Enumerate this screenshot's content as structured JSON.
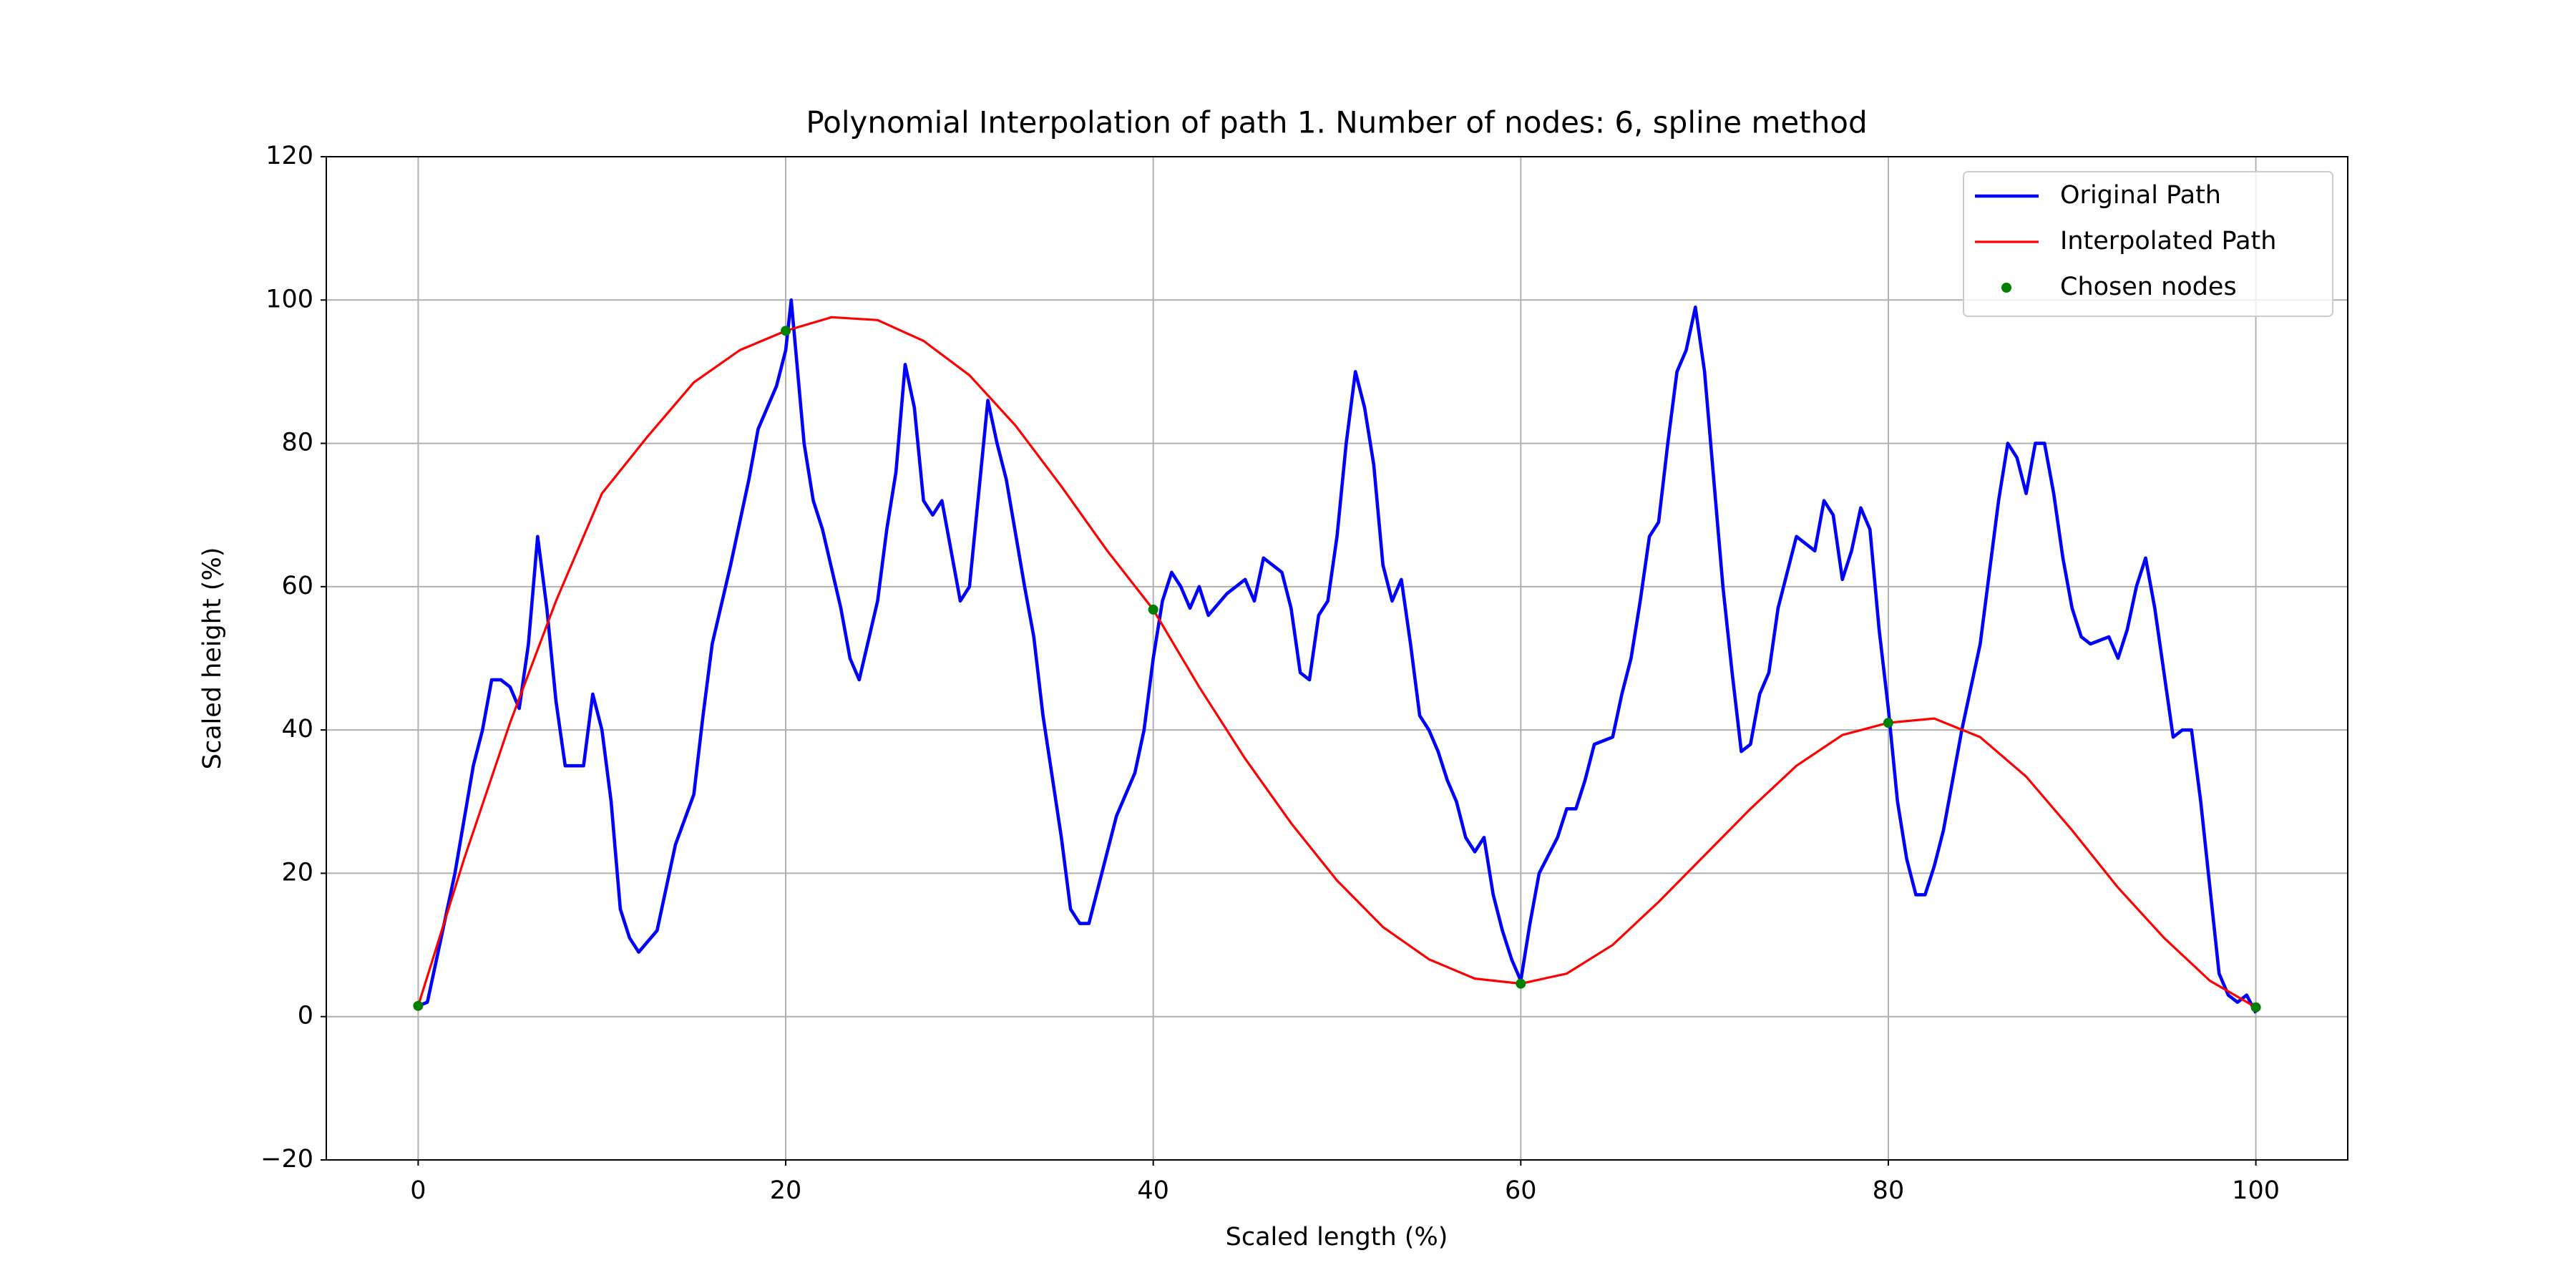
{
  "chart_data": {
    "type": "line",
    "title": "Polynomial Interpolation of path 1. Number of nodes: 6, spline method",
    "xlabel": "Scaled length (%)",
    "ylabel": "Scaled height (%)",
    "xlim": [
      -5,
      105
    ],
    "ylim": [
      -20,
      120
    ],
    "xticks": [
      0,
      20,
      40,
      60,
      80,
      100
    ],
    "yticks": [
      {
        "value": -20,
        "label": "−20"
      },
      0,
      20,
      40,
      60,
      80,
      100,
      120
    ],
    "grid": true,
    "legend": "upper right",
    "series": [
      {
        "name": "Original Path",
        "color": "#0000ff",
        "kind": "line",
        "x": [
          0,
          0.5,
          1,
          2,
          3,
          3.5,
          4,
          4.5,
          5,
          5.5,
          6,
          6.5,
          7,
          7.5,
          8,
          9,
          9.5,
          10,
          10.5,
          11,
          11.5,
          12,
          13,
          14,
          15,
          15.5,
          16,
          17,
          18,
          18.5,
          19,
          19.5,
          20,
          20.3,
          21,
          21.5,
          22,
          23,
          23.5,
          24,
          25,
          25.5,
          26,
          26.5,
          27,
          27.5,
          28,
          28.5,
          29,
          29.5,
          30,
          31,
          31.5,
          32,
          33,
          33.5,
          34,
          35,
          35.5,
          36,
          36.5,
          37,
          38,
          39,
          39.5,
          40,
          40.5,
          41,
          41.5,
          42,
          42.5,
          43,
          44,
          45,
          45.5,
          46,
          47,
          47.5,
          48,
          48.5,
          49,
          49.5,
          50,
          50.5,
          51,
          51.5,
          52,
          52.5,
          53,
          53.5,
          54,
          54.5,
          55,
          55.5,
          56,
          56.5,
          57,
          57.5,
          58,
          58.5,
          59,
          59.5,
          60,
          60.5,
          61,
          62,
          62.5,
          63,
          63.5,
          64,
          65,
          65.5,
          66,
          66.5,
          67,
          67.5,
          68,
          68.5,
          69,
          69.5,
          70,
          70.5,
          71,
          71.5,
          72,
          72.5,
          73,
          73.5,
          74,
          74.5,
          75,
          75.5,
          76,
          76.5,
          77,
          77.5,
          78,
          78.5,
          79,
          79.5,
          80,
          80.5,
          81,
          81.5,
          82,
          82.5,
          83,
          83.5,
          84,
          85,
          85.5,
          86,
          86.5,
          87,
          87.5,
          88,
          88.5,
          89,
          89.5,
          90,
          90.5,
          91,
          92,
          92.5,
          93,
          93.5,
          94,
          94.5,
          95,
          95.5,
          96,
          96.5,
          97,
          97.5,
          98,
          98.5,
          99,
          99.5,
          100
        ],
        "values": [
          1.5,
          2,
          8,
          20,
          35,
          40,
          47,
          47,
          46,
          43,
          52,
          67,
          57,
          44,
          35,
          35,
          45,
          40,
          30,
          15,
          11,
          9,
          12,
          24,
          31,
          42,
          52,
          63,
          75,
          82,
          85,
          88,
          93,
          100,
          80,
          72,
          68,
          57,
          50,
          47,
          58,
          68,
          76,
          91,
          85,
          72,
          70,
          72,
          65,
          58,
          60,
          86,
          80,
          75,
          60,
          53,
          42,
          25,
          15,
          13,
          13,
          18,
          28,
          34,
          40,
          50,
          58,
          62,
          60,
          57,
          60,
          56,
          59,
          61,
          58,
          64,
          62,
          57,
          48,
          47,
          56,
          58,
          67,
          80,
          90,
          85,
          77,
          63,
          58,
          61,
          52,
          42,
          40,
          37,
          33,
          30,
          25,
          23,
          25,
          17,
          12,
          8,
          5,
          13,
          20,
          25,
          29,
          29,
          33,
          38,
          39,
          45,
          50,
          58,
          67,
          69,
          80,
          90,
          93,
          99,
          90,
          75,
          60,
          48,
          37,
          38,
          45,
          48,
          57,
          62,
          67,
          66,
          65,
          72,
          70,
          61,
          65,
          71,
          68,
          54,
          43,
          30,
          22,
          17,
          17,
          21,
          26,
          33,
          40,
          52,
          62,
          72,
          80,
          78,
          73,
          80,
          80,
          73,
          64,
          57,
          53,
          52,
          53,
          50,
          54,
          60,
          64,
          57,
          48,
          39,
          40,
          40,
          30,
          18,
          6,
          3,
          2,
          3,
          0.5
        ]
      },
      {
        "name": "Interpolated Path",
        "color": "#ff0000",
        "kind": "line",
        "x": [
          0,
          2.5,
          5,
          7.5,
          10,
          12.5,
          15,
          17.5,
          20,
          22.5,
          25,
          27.5,
          30,
          32.5,
          35,
          37.5,
          40,
          42.5,
          45,
          47.5,
          50,
          52.5,
          55,
          57.5,
          60,
          62.5,
          65,
          67.5,
          70,
          72.5,
          75,
          77.5,
          80,
          82.5,
          85,
          87.5,
          90,
          92.5,
          95,
          97.5,
          100
        ],
        "values": [
          1.5,
          22,
          41,
          58,
          73,
          81,
          88.5,
          93,
          95.7,
          97.6,
          97.2,
          94.3,
          89.5,
          82.5,
          74,
          65,
          56.8,
          46,
          36,
          27,
          19,
          12.5,
          8,
          5.3,
          4.6,
          6,
          10,
          16,
          22.5,
          29,
          35,
          39.3,
          41,
          41.6,
          39,
          33.5,
          26,
          18,
          11,
          5,
          1.3
        ]
      },
      {
        "name": "Chosen nodes",
        "color": "#008000",
        "kind": "scatter",
        "x": [
          0,
          20,
          40,
          60,
          80,
          100
        ],
        "values": [
          1.5,
          95.7,
          56.8,
          4.6,
          41,
          1.3
        ]
      }
    ]
  }
}
